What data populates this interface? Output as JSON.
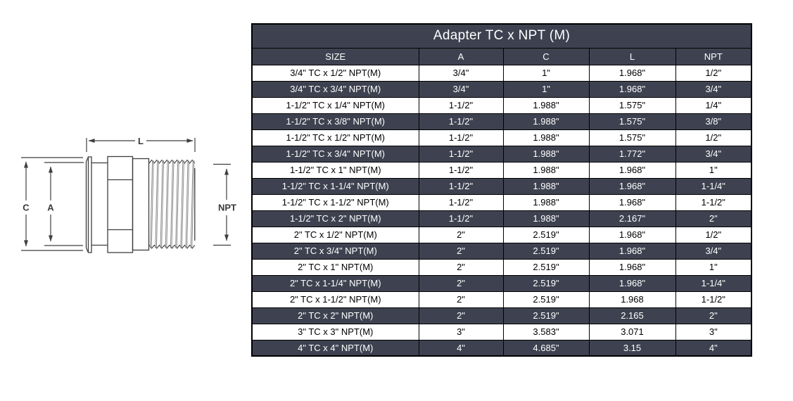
{
  "diagram": {
    "dim_l": "L",
    "dim_c": "C",
    "dim_a": "A",
    "dim_npt": "NPT"
  },
  "table": {
    "title": "Adapter TC x NPT (M)",
    "columns": [
      "SIZE",
      "A",
      "C",
      "L",
      "NPT"
    ],
    "rows": [
      [
        "3/4\" TC x 1/2\" NPT(M)",
        "3/4\"",
        "1\"",
        "1.968\"",
        "1/2\""
      ],
      [
        "3/4\" TC x 3/4\" NPT(M)",
        "3/4\"",
        "1\"",
        "1.968\"",
        "3/4\""
      ],
      [
        "1-1/2\" TC x 1/4\" NPT(M)",
        "1-1/2\"",
        "1.988\"",
        "1.575\"",
        "1/4\""
      ],
      [
        "1-1/2\" TC x 3/8\" NPT(M)",
        "1-1/2\"",
        "1.988\"",
        "1.575\"",
        "3/8\""
      ],
      [
        "1-1/2\" TC x 1/2\" NPT(M)",
        "1-1/2\"",
        "1.988\"",
        "1.575\"",
        "1/2\""
      ],
      [
        "1-1/2\" TC x 3/4\" NPT(M)",
        "1-1/2\"",
        "1.988\"",
        "1.772\"",
        "3/4\""
      ],
      [
        "1-1/2\" TC x 1\" NPT(M)",
        "1-1/2\"",
        "1.988\"",
        "1.968\"",
        "1\""
      ],
      [
        "1-1/2\" TC x 1-1/4\" NPT(M)",
        "1-1/2\"",
        "1.988\"",
        "1.968\"",
        "1-1/4\""
      ],
      [
        "1-1/2\" TC x 1-1/2\" NPT(M)",
        "1-1/2\"",
        "1.988\"",
        "1.968\"",
        "1-1/2\""
      ],
      [
        "1-1/2\" TC x 2\" NPT(M)",
        "1-1/2\"",
        "1.988\"",
        "2.167\"",
        "2\""
      ],
      [
        "2\" TC x 1/2\" NPT(M)",
        "2\"",
        "2.519\"",
        "1.968\"",
        "1/2\""
      ],
      [
        "2\" TC x 3/4\" NPT(M)",
        "2\"",
        "2.519\"",
        "1.968\"",
        "3/4\""
      ],
      [
        "2\" TC x 1\" NPT(M)",
        "2\"",
        "2.519\"",
        "1.968\"",
        "1\""
      ],
      [
        "2\" TC x 1-1/4\" NPT(M)",
        "2\"",
        "2.519\"",
        "1.968\"",
        "1-1/4\""
      ],
      [
        "2\" TC x 1-1/2\" NPT(M)",
        "2\"",
        "2.519\"",
        "1.968",
        "1-1/2\""
      ],
      [
        "2\" TC x 2\" NPT(M)",
        "2\"",
        "2.519\"",
        "2.165",
        "2\""
      ],
      [
        "3\" TC x 3\" NPT(M)",
        "3\"",
        "3.583\"",
        "3.071",
        "3\""
      ],
      [
        "4\" TC x 4\" NPT(M)",
        "4\"",
        "4.685\"",
        "3.15",
        "4\""
      ]
    ]
  },
  "colors": {
    "dark_row_bg": "#3E4250",
    "light_row_bg": "#FFFFFF",
    "dark_row_text": "#FFFFFF",
    "light_row_text": "#000000",
    "border": "#000000",
    "drawing_line": "#3F3F3F",
    "thread_hatch": "#8F8F8F"
  }
}
